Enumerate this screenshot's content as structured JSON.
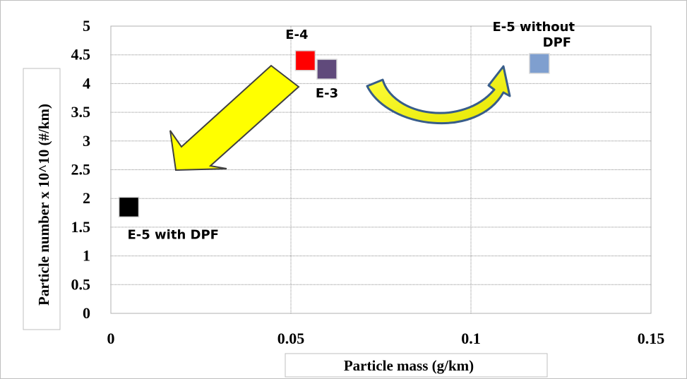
{
  "chart_data": {
    "type": "scatter",
    "xlabel": "Particle mass (g/km)",
    "ylabel": "Particle number x 10^10 (#/km)",
    "xlim": [
      0,
      0.15
    ],
    "ylim": [
      0,
      5
    ],
    "x_ticks": [
      "0",
      "0.05",
      "0.1",
      "0.15"
    ],
    "y_ticks": [
      "0",
      "0.5",
      "1",
      "1.5",
      "2",
      "2.5",
      "3",
      "3.5",
      "4",
      "4.5",
      "5"
    ],
    "grid": true,
    "points": [
      {
        "label": "E-4",
        "x": 0.054,
        "y": 4.4,
        "color": "#ff0000"
      },
      {
        "label": "E-3",
        "x": 0.06,
        "y": 4.25,
        "color": "#604a7b"
      },
      {
        "label": "E-5 without DPF",
        "x": 0.119,
        "y": 4.35,
        "color": "#7f9fcf"
      },
      {
        "label": "E-5 with DPF",
        "x": 0.005,
        "y": 1.85,
        "color": "#000000"
      }
    ],
    "arrows": [
      {
        "name": "down-left-arrow",
        "color": "#ffff00",
        "outline": "#404040"
      },
      {
        "name": "curved-arrow",
        "color": "#ffff00",
        "outline": "#385d8a"
      }
    ]
  }
}
